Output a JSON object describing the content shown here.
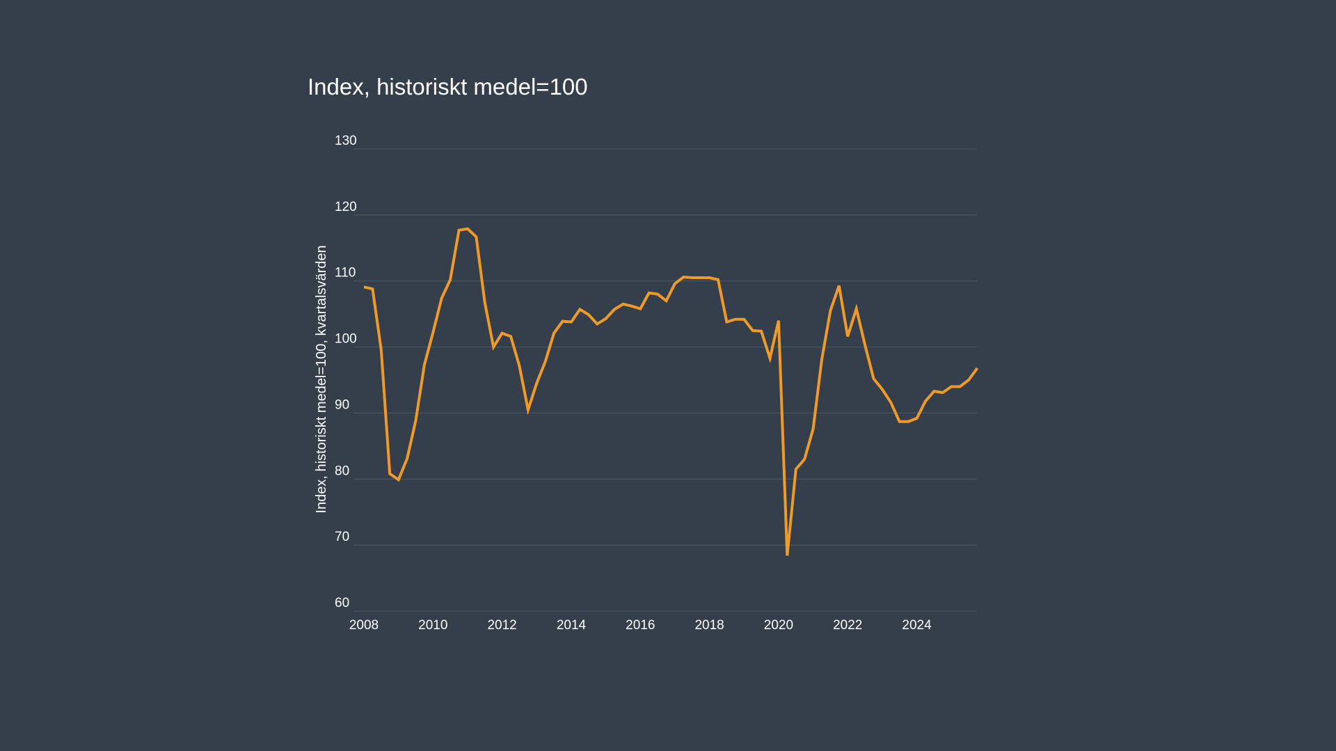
{
  "chart_data": {
    "type": "line",
    "title": "Index, historiskt medel=100",
    "xlabel": "",
    "ylabel": "Index, historiskt medel=100, kvartalsvärden",
    "ylim": [
      60,
      130
    ],
    "xlim": [
      2008,
      2025.75
    ],
    "yticks": [
      "60",
      "70",
      "80",
      "90",
      "100",
      "110",
      "120",
      "130"
    ],
    "xticks": [
      "2008",
      "2010",
      "2012",
      "2014",
      "2016",
      "2018",
      "2020",
      "2022",
      "2024"
    ],
    "grid": true,
    "color": "#f09a28",
    "series": [
      {
        "name": "Index",
        "x_start": 2008,
        "step": 0.25,
        "values": [
          109.1,
          108.8,
          99.6,
          80.8,
          79.9,
          83.1,
          88.9,
          97.3,
          102.2,
          107.4,
          110.2,
          117.7,
          117.9,
          116.7,
          106.7,
          100.0,
          102.1,
          101.6,
          97.1,
          90.5,
          94.5,
          97.8,
          102.1,
          103.9,
          103.8,
          105.7,
          104.9,
          103.5,
          104.3,
          105.7,
          106.5,
          106.2,
          105.8,
          108.2,
          108.0,
          107.0,
          109.6,
          110.6,
          110.5,
          110.5,
          110.5,
          110.2,
          103.8,
          104.2,
          104.2,
          102.5,
          102.4,
          98.3,
          104.0,
          68.4,
          81.5,
          83.0,
          87.6,
          98.1,
          105.5,
          109.3,
          101.6,
          105.8,
          100.3,
          95.2,
          93.6,
          91.6,
          88.7,
          88.7,
          89.2,
          91.8,
          93.3,
          93.1,
          94.0,
          94.0,
          95.0,
          96.8
        ]
      }
    ]
  }
}
